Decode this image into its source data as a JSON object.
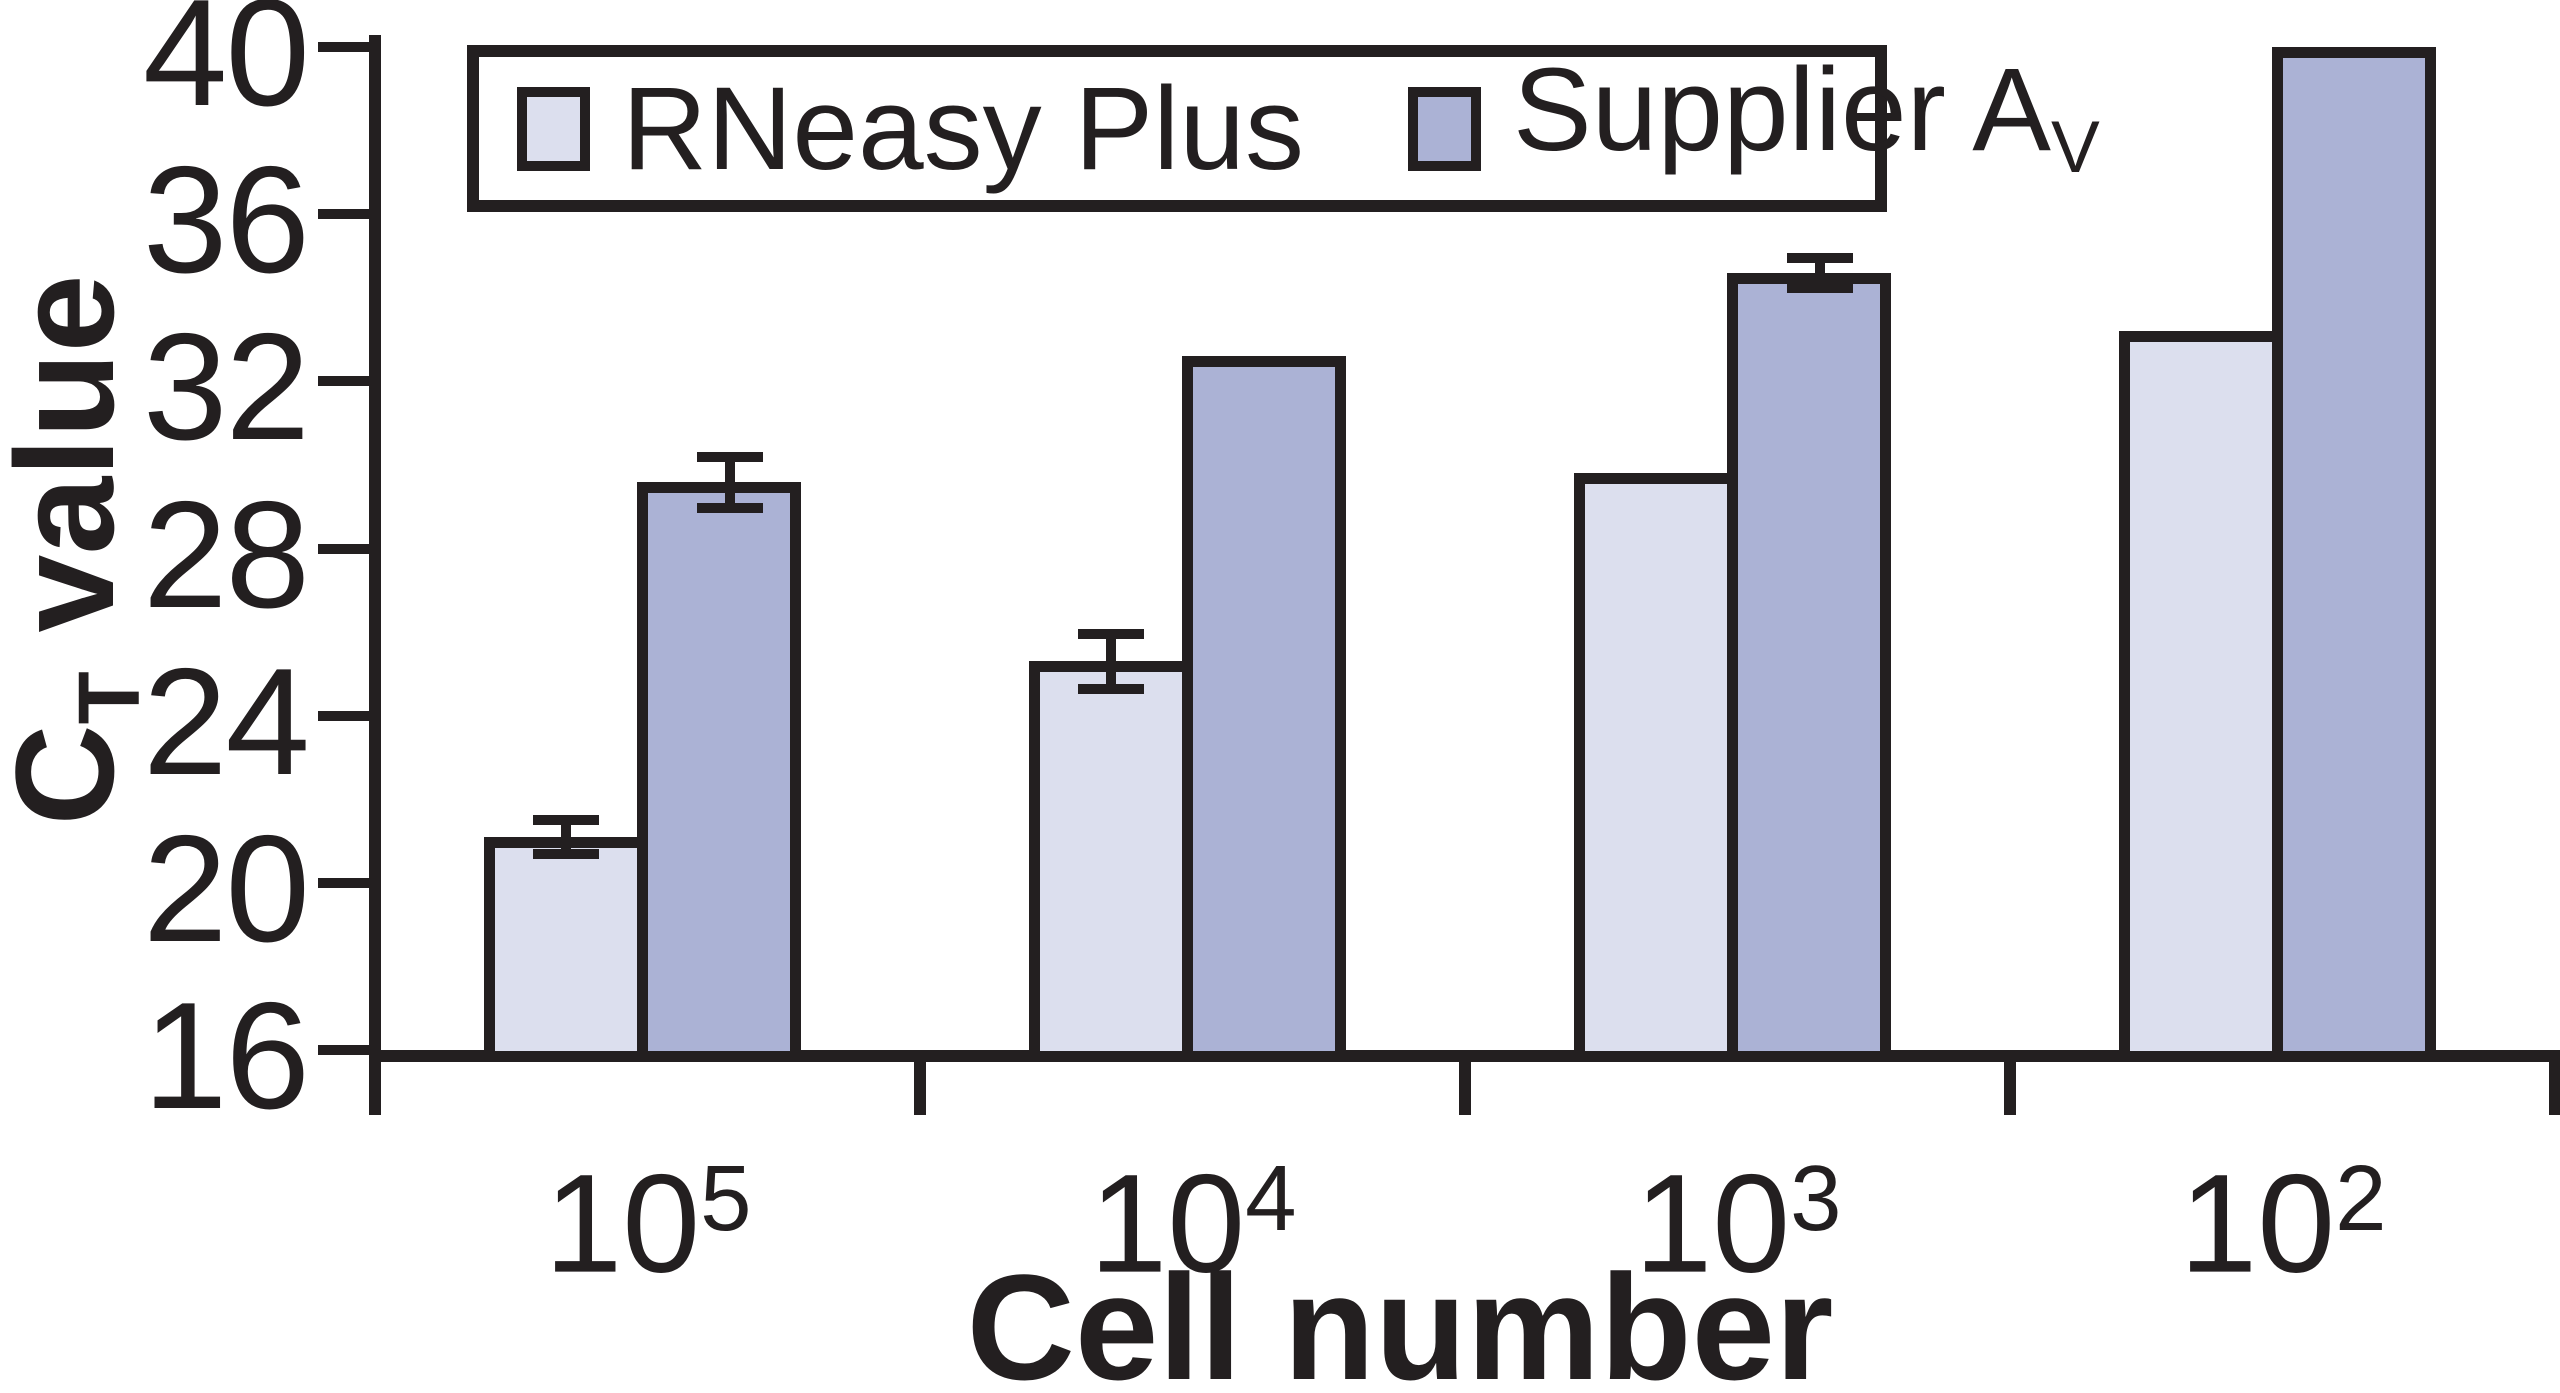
{
  "chart_data": {
    "type": "bar",
    "title": "",
    "xlabel": "Cell number",
    "ylabel_main": "C",
    "ylabel_sub": "T",
    "ylabel_rest": " value",
    "ylim": [
      16,
      40
    ],
    "yticks": [
      40,
      36,
      32,
      28,
      24,
      20,
      16
    ],
    "grid": false,
    "legend_position": "top",
    "axis_color": "#231f20",
    "categories": [
      {
        "base": "10",
        "exp": "5"
      },
      {
        "base": "10",
        "exp": "4"
      },
      {
        "base": "10",
        "exp": "3"
      },
      {
        "base": "10",
        "exp": "2"
      }
    ],
    "series": [
      {
        "name": "RNeasy Plus",
        "name_sub": "",
        "color": "#dcdfee",
        "values": [
          21.1,
          25.3,
          29.8,
          33.2
        ],
        "errors": [
          0.3,
          0.55,
          null,
          null
        ]
      },
      {
        "name": "Supplier A",
        "name_sub": "V",
        "color": "#abb2d5",
        "values": [
          29.6,
          32.6,
          34.6,
          40.0
        ],
        "errors": [
          0.5,
          null,
          0.25,
          null
        ]
      }
    ]
  }
}
